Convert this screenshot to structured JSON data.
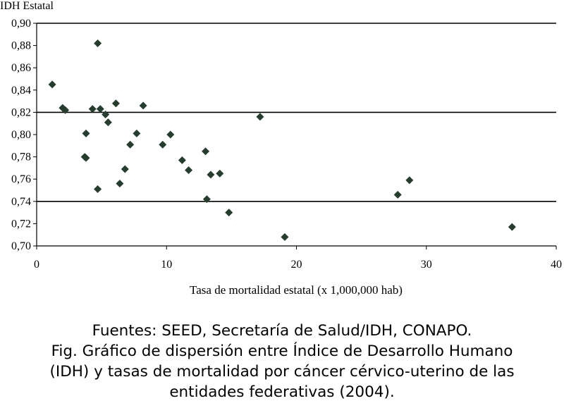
{
  "chart_data": {
    "type": "scatter",
    "title": "",
    "xlabel": "Tasa de mortalidad estatal (x 1,000,000 hab)",
    "ylabel": "IDH Estatal",
    "xlim": [
      0,
      40
    ],
    "ylim": [
      0.7,
      0.9
    ],
    "x_ticks": [
      0,
      10,
      20,
      30,
      40
    ],
    "x_tick_labels": [
      "0",
      "10",
      "20",
      "30",
      "40"
    ],
    "y_ticks": [
      0.7,
      0.72,
      0.74,
      0.76,
      0.78,
      0.8,
      0.82,
      0.84,
      0.86,
      0.88,
      0.9
    ],
    "y_tick_labels": [
      "0,70",
      "0,72",
      "0,74",
      "0,76",
      "0,78",
      "0,80",
      "0,82",
      "0,84",
      "0,86",
      "0,88",
      "0,90"
    ],
    "grid_lines": [
      0.74,
      0.82,
      0.9
    ],
    "marker_color": "#253d2c",
    "points": [
      {
        "x": 1.2,
        "y": 0.845
      },
      {
        "x": 2.0,
        "y": 0.824
      },
      {
        "x": 2.2,
        "y": 0.822
      },
      {
        "x": 3.8,
        "y": 0.801
      },
      {
        "x": 3.7,
        "y": 0.78
      },
      {
        "x": 3.8,
        "y": 0.779
      },
      {
        "x": 4.3,
        "y": 0.823
      },
      {
        "x": 4.7,
        "y": 0.882
      },
      {
        "x": 4.9,
        "y": 0.823
      },
      {
        "x": 4.7,
        "y": 0.751
      },
      {
        "x": 5.3,
        "y": 0.818
      },
      {
        "x": 5.5,
        "y": 0.811
      },
      {
        "x": 6.1,
        "y": 0.828
      },
      {
        "x": 6.4,
        "y": 0.756
      },
      {
        "x": 6.8,
        "y": 0.769
      },
      {
        "x": 7.2,
        "y": 0.791
      },
      {
        "x": 7.7,
        "y": 0.801
      },
      {
        "x": 8.2,
        "y": 0.826
      },
      {
        "x": 9.7,
        "y": 0.791
      },
      {
        "x": 10.3,
        "y": 0.8
      },
      {
        "x": 11.2,
        "y": 0.777
      },
      {
        "x": 11.7,
        "y": 0.768
      },
      {
        "x": 13.0,
        "y": 0.785
      },
      {
        "x": 13.1,
        "y": 0.742
      },
      {
        "x": 13.4,
        "y": 0.764
      },
      {
        "x": 14.1,
        "y": 0.765
      },
      {
        "x": 14.8,
        "y": 0.73
      },
      {
        "x": 17.2,
        "y": 0.816
      },
      {
        "x": 19.1,
        "y": 0.708
      },
      {
        "x": 27.8,
        "y": 0.746
      },
      {
        "x": 28.7,
        "y": 0.759
      },
      {
        "x": 36.6,
        "y": 0.717
      }
    ]
  },
  "caption": {
    "line1": "Fuentes: SEED, Secretaría de Salud/IDH, CONAPO.",
    "line2": "Fig. Gráfico de dispersión entre Índice de Desarrollo Humano",
    "line3": "(IDH) y tasas de mortalidad por cáncer cérvico-uterino de las",
    "line4": "entidades federativas (2004)."
  }
}
